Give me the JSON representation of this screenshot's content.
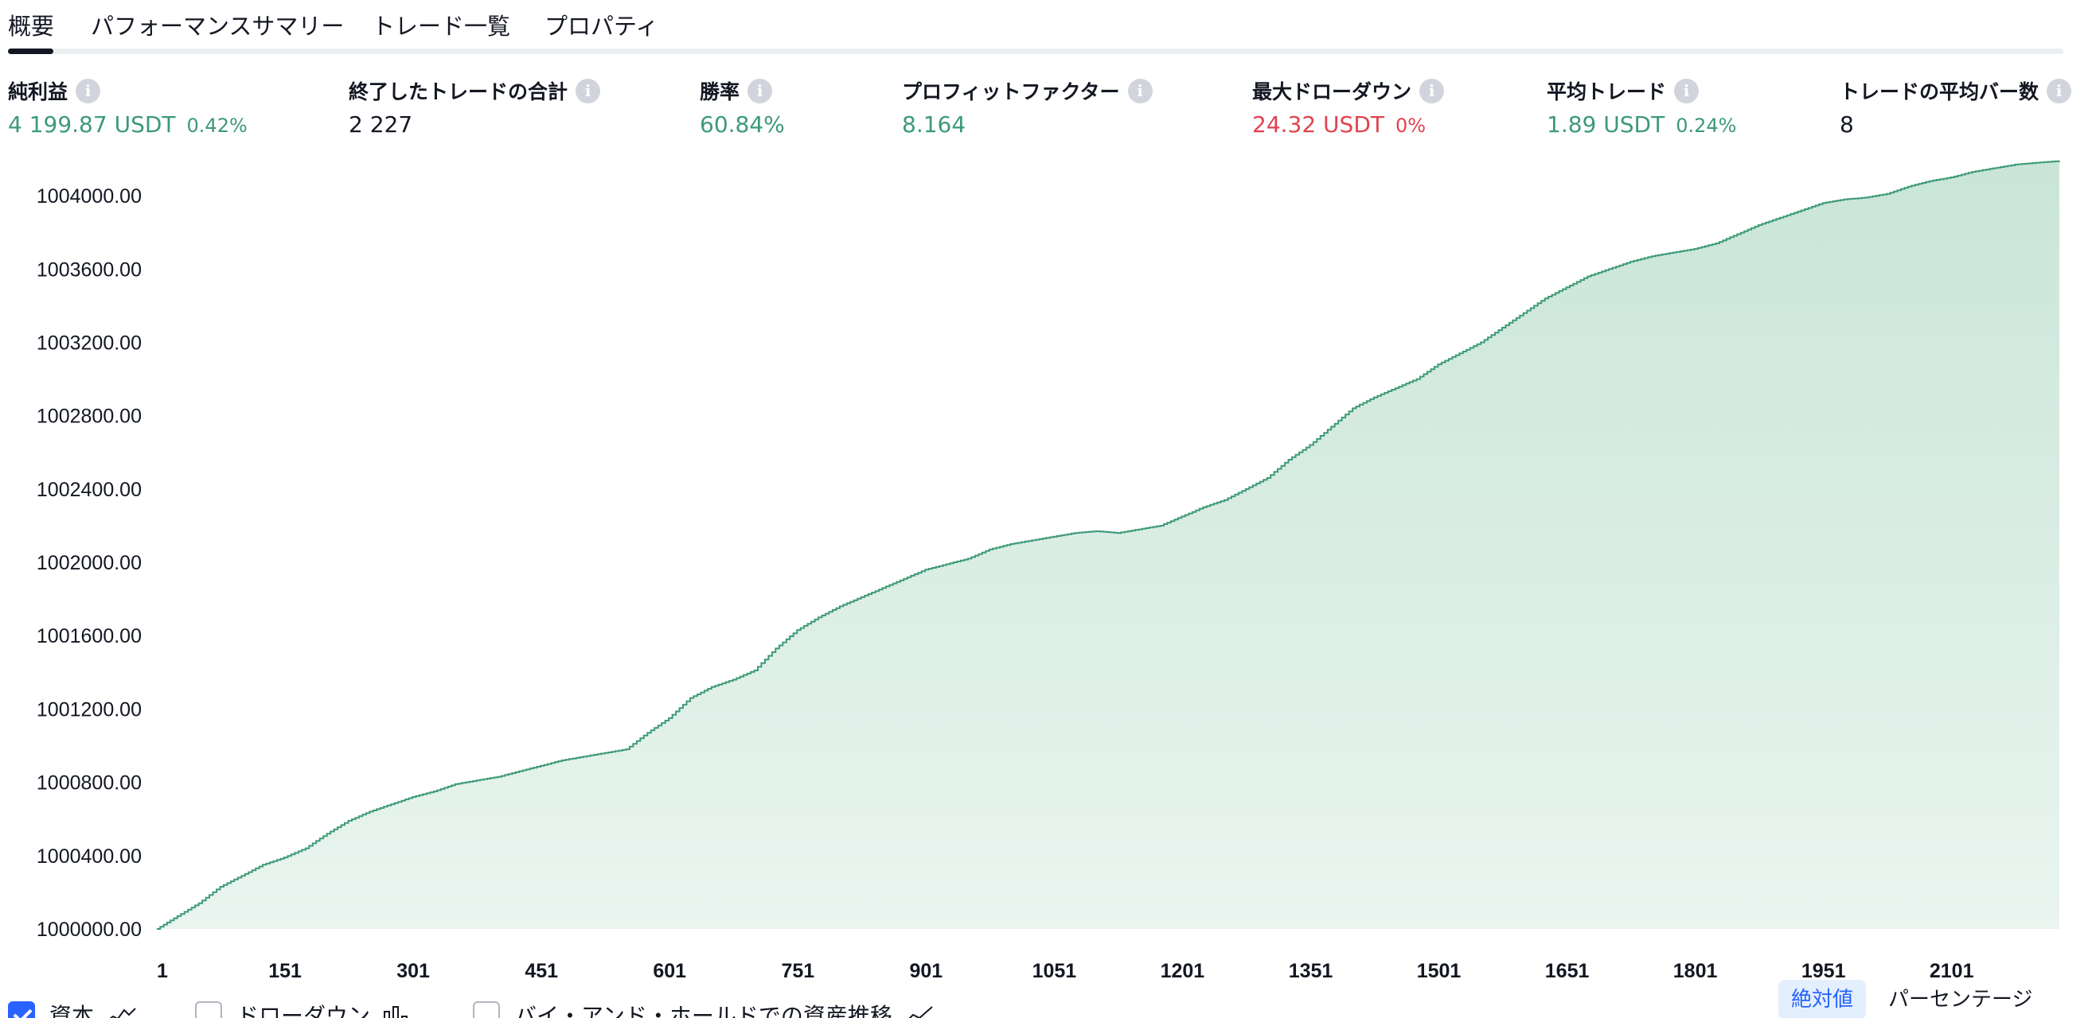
{
  "tabs": [
    {
      "label": "概要",
      "active": true
    },
    {
      "label": "パフォーマンスサマリー",
      "active": false
    },
    {
      "label": "トレード一覧",
      "active": false
    },
    {
      "label": "プロパティ",
      "active": false
    }
  ],
  "metrics": [
    {
      "title": "純利益",
      "value": "4 199.87 USDT",
      "sub": "0.42%",
      "tone": "pos"
    },
    {
      "title": "終了したトレードの合計",
      "value": "2 227",
      "sub": "",
      "tone": "neutral"
    },
    {
      "title": "勝率",
      "value": "60.84%",
      "sub": "",
      "tone": "pos"
    },
    {
      "title": "プロフィットファクター",
      "value": "8.164",
      "sub": "",
      "tone": "pos"
    },
    {
      "title": "最大ドローダウン",
      "value": "24.32 USDT",
      "sub": "0%",
      "tone": "neg"
    },
    {
      "title": "平均トレード",
      "value": "1.89 USDT",
      "sub": "0.24%",
      "tone": "pos"
    },
    {
      "title": "トレードの平均バー数",
      "value": "8",
      "sub": "",
      "tone": "neutral"
    }
  ],
  "info_icon": {
    "glyph": "i",
    "name": "info-icon"
  },
  "legend": {
    "items": [
      {
        "label": "資本",
        "checked": true,
        "icon": "equity-line-icon"
      },
      {
        "label": "ドローダウン",
        "checked": false,
        "icon": "drawdown-bars-icon"
      },
      {
        "label": "バイ・アンド・ホールドでの資産推移",
        "checked": false,
        "icon": "buy-hold-line-icon"
      }
    ],
    "modes": [
      {
        "label": "絶対値",
        "active": true
      },
      {
        "label": "パーセンテージ",
        "active": false
      }
    ]
  },
  "colors": {
    "line": "#3d9a77",
    "area_top": "#c9e5d8",
    "area_bottom": "#eaf5f0",
    "positive": "#3d9a77",
    "negative": "#e0434f",
    "accent": "#2962ff"
  },
  "chart_data": {
    "type": "area",
    "x_ticks": [
      "1",
      "151",
      "301",
      "451",
      "601",
      "751",
      "901",
      "1051",
      "1201",
      "1351",
      "1501",
      "1651",
      "1801",
      "1951",
      "2101"
    ],
    "y_ticks": [
      "1000000.00",
      "1000400.00",
      "1000800.00",
      "1001200.00",
      "1001600.00",
      "1002000.00",
      "1002400.00",
      "1002800.00",
      "1003200.00",
      "1003600.00",
      "1004000.00"
    ],
    "xlim": [
      1,
      2227
    ],
    "ylim": [
      1000000,
      1004200
    ],
    "grid": false,
    "series": [
      {
        "x": [
          1,
          25,
          50,
          75,
          100,
          125,
          150,
          175,
          200,
          225,
          250,
          275,
          300,
          325,
          350,
          375,
          400,
          425,
          450,
          475,
          500,
          525,
          550,
          575,
          600,
          625,
          650,
          675,
          700,
          725,
          750,
          775,
          800,
          825,
          850,
          875,
          900,
          925,
          950,
          975,
          1000,
          1025,
          1050,
          1075,
          1100,
          1125,
          1150,
          1175,
          1200,
          1225,
          1250,
          1275,
          1300,
          1325,
          1350,
          1375,
          1400,
          1425,
          1450,
          1475,
          1500,
          1525,
          1550,
          1575,
          1600,
          1625,
          1650,
          1675,
          1700,
          1725,
          1750,
          1775,
          1800,
          1825,
          1850,
          1875,
          1900,
          1925,
          1950,
          1975,
          2000,
          2025,
          2050,
          2075,
          2100,
          2125,
          2150,
          2175,
          2200,
          2227
        ],
        "y": [
          1000000,
          1000070,
          1000140,
          1000230,
          1000290,
          1000350,
          1000390,
          1000440,
          1000520,
          1000590,
          1000640,
          1000680,
          1000720,
          1000750,
          1000790,
          1000810,
          1000830,
          1000860,
          1000890,
          1000920,
          1000940,
          1000960,
          1000980,
          1001070,
          1001150,
          1001260,
          1001320,
          1001360,
          1001410,
          1001530,
          1001630,
          1001700,
          1001760,
          1001810,
          1001860,
          1001910,
          1001960,
          1001990,
          1002020,
          1002070,
          1002100,
          1002120,
          1002140,
          1002160,
          1002170,
          1002160,
          1002180,
          1002200,
          1002250,
          1002300,
          1002340,
          1002400,
          1002460,
          1002560,
          1002640,
          1002740,
          1002840,
          1002900,
          1002950,
          1003000,
          1003080,
          1003140,
          1003200,
          1003280,
          1003360,
          1003440,
          1003500,
          1003560,
          1003600,
          1003640,
          1003670,
          1003690,
          1003710,
          1003740,
          1003790,
          1003840,
          1003880,
          1003920,
          1003960,
          1003980,
          1003990,
          1004010,
          1004050,
          1004080,
          1004100,
          1004130,
          1004150,
          1004170,
          1004180,
          1004190
        ]
      }
    ]
  }
}
